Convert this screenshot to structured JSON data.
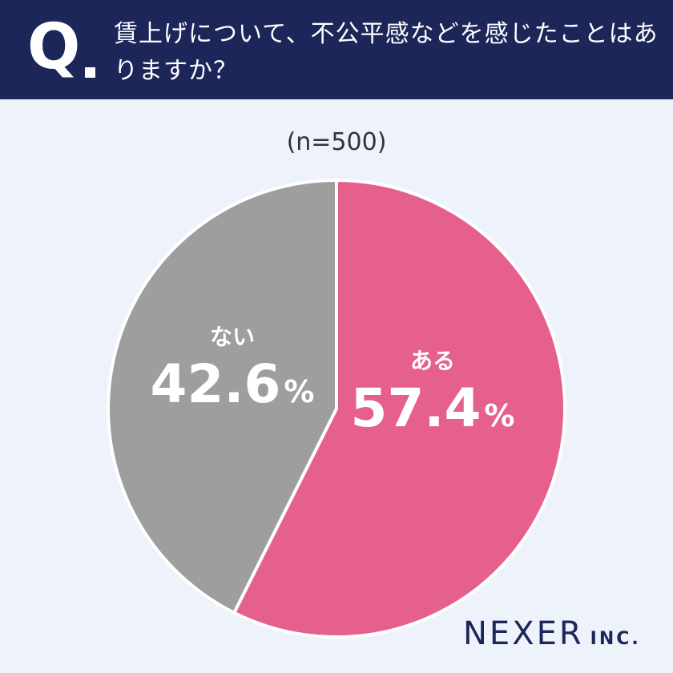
{
  "header": {
    "q_letter": "Q",
    "question": "賃上げについて、不公平感などを感じたことはありますか？"
  },
  "sample_size": "(n=500)",
  "brand": {
    "main": "NEXER",
    "sub": "INC."
  },
  "colors": {
    "header_bg": "#1c2659",
    "page_bg": "#eef2fa",
    "yes": "#e5608c",
    "no": "#9e9e9e"
  },
  "chart_data": {
    "type": "pie",
    "title": "",
    "slices": [
      {
        "label": "ある",
        "value": 57.4,
        "display": "57.4",
        "unit": "%",
        "color": "#e5608c"
      },
      {
        "label": "ない",
        "value": 42.6,
        "display": "42.6",
        "unit": "%",
        "color": "#9e9e9e"
      }
    ],
    "start": "12 o'clock",
    "direction": "clockwise"
  }
}
